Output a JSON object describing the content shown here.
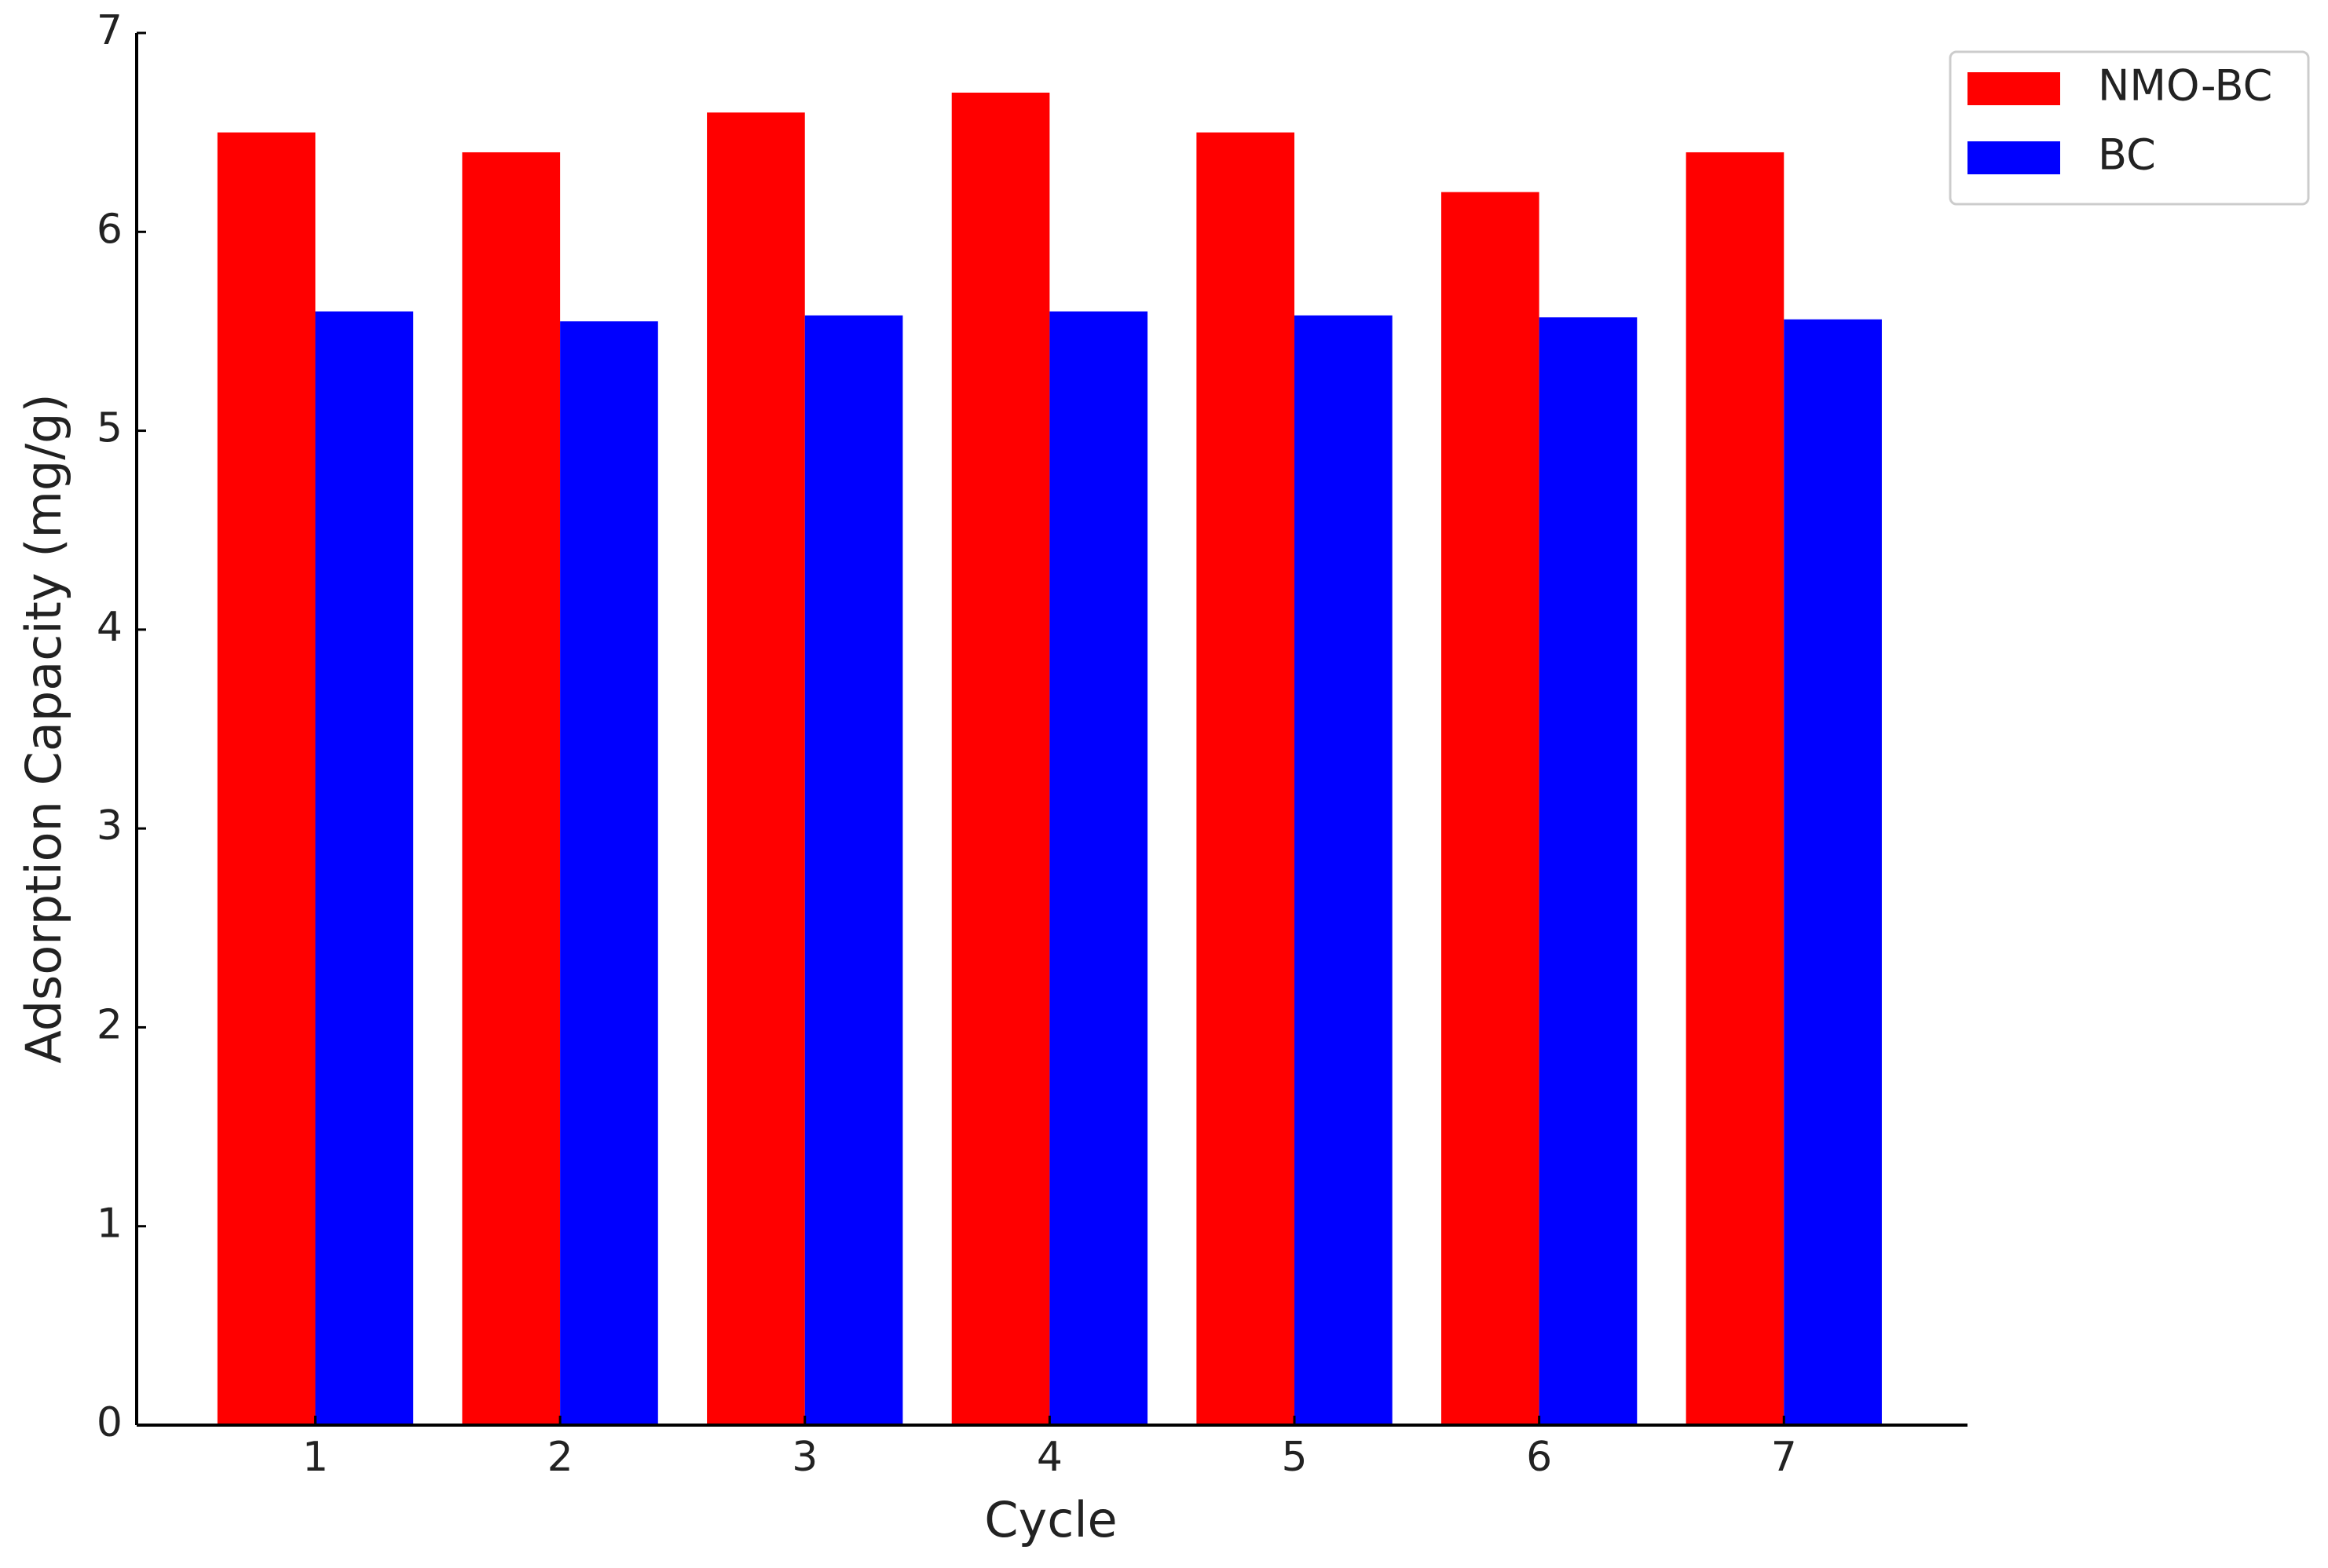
{
  "chart_data": {
    "type": "bar",
    "x_label": "Cycle",
    "y_label": "Adsorption Capacity (mg/g)",
    "x": [
      1,
      2,
      3,
      4,
      5,
      6,
      7
    ],
    "xlim": [
      0.27,
      7.75
    ],
    "xticks": [
      1,
      2,
      3,
      4,
      5,
      6,
      7
    ],
    "ylim": [
      0,
      7
    ],
    "yticks": [
      0,
      1,
      2,
      3,
      4,
      5,
      6,
      7
    ],
    "grid": false,
    "legend": "upper right",
    "series": [
      {
        "name": "NMO-BC",
        "color": "#ff0000",
        "values": [
          6.5,
          6.4,
          6.6,
          6.7,
          6.5,
          6.2,
          6.4
        ]
      },
      {
        "name": "BC",
        "color": "#0000ff",
        "values": [
          5.6,
          5.55,
          5.58,
          5.6,
          5.58,
          5.57,
          5.56
        ]
      }
    ]
  }
}
